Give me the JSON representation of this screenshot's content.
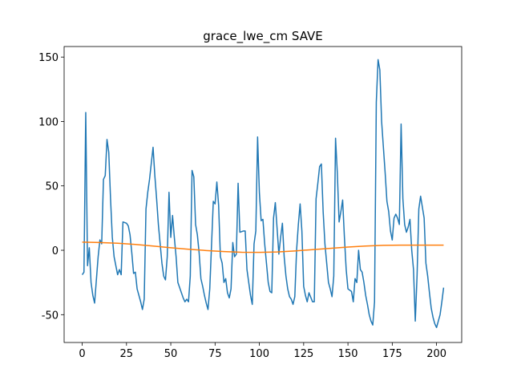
{
  "chart_data": {
    "type": "line",
    "title": "grace_lwe_cm SAVE",
    "xlim": [
      -10.2,
      214.2
    ],
    "xticks": [
      0,
      25,
      50,
      75,
      100,
      125,
      150,
      175,
      200
    ],
    "ylim": [
      -71.6,
      158.2
    ],
    "yticks": [
      -50,
      0,
      50,
      100,
      150
    ],
    "series": [
      {
        "color": "#1f77b4",
        "x": [
          0,
          1,
          2,
          3,
          4,
          5,
          6,
          7,
          9,
          10,
          11,
          12,
          13,
          14,
          15,
          16,
          17,
          18,
          19,
          20,
          21,
          22,
          23,
          25,
          26,
          27,
          28,
          29,
          30,
          31,
          32,
          33,
          34,
          35,
          36,
          37,
          38,
          40,
          41,
          42,
          43,
          44,
          45,
          46,
          47,
          48,
          49,
          50,
          51,
          52,
          53,
          54,
          56,
          57,
          58,
          59,
          60,
          61,
          62,
          63,
          64,
          65,
          66,
          67,
          68,
          69,
          70,
          71,
          72,
          74,
          75,
          76,
          77,
          78,
          79,
          80,
          81,
          82,
          83,
          84,
          85,
          86,
          87,
          88,
          89,
          91,
          92,
          93,
          94,
          95,
          96,
          97,
          98,
          99,
          100,
          101,
          102,
          103,
          104,
          105,
          106,
          107,
          108,
          109,
          111,
          112,
          113,
          114,
          115,
          116,
          117,
          118,
          119,
          120,
          121,
          122,
          123,
          124,
          125,
          126,
          127,
          128,
          130,
          131,
          132,
          133,
          134,
          135,
          136,
          137,
          138,
          139,
          140,
          141,
          142,
          143,
          144,
          145,
          146,
          147,
          148,
          149,
          150,
          152,
          153,
          154,
          155,
          156,
          157,
          158,
          159,
          160,
          161,
          162,
          163,
          164,
          165,
          166,
          167,
          168,
          169,
          171,
          172,
          173,
          174,
          175,
          176,
          177,
          178,
          179,
          180,
          181,
          182,
          183,
          184,
          185,
          186,
          187,
          188,
          189,
          190,
          191,
          193,
          194,
          195,
          196,
          197,
          198,
          199,
          200,
          201,
          202,
          203,
          204
        ],
        "values": [
          -19,
          -17,
          107,
          -12,
          2,
          -25,
          -35,
          -41,
          -5,
          8,
          5,
          55,
          58,
          86,
          76,
          40,
          10,
          -5,
          -12,
          -19,
          -15,
          -19,
          22,
          21,
          19,
          12,
          -2,
          -18,
          -17,
          -30,
          -35,
          -40,
          -46,
          -38,
          32,
          45,
          55,
          80,
          58,
          40,
          20,
          5,
          -10,
          -20,
          -23,
          -5,
          45,
          10,
          27,
          10,
          -5,
          -25,
          -33,
          -37,
          -40,
          -38,
          -40,
          -20,
          62,
          57,
          20,
          12,
          -2,
          -22,
          -28,
          -35,
          -41,
          -46,
          -30,
          38,
          36,
          53,
          35,
          -5,
          -10,
          -25,
          -22,
          -33,
          -37,
          -30,
          6,
          -5,
          -3,
          52,
          14,
          15,
          15,
          -15,
          -25,
          -35,
          -42,
          5,
          15,
          88,
          45,
          23,
          24,
          5,
          -10,
          -25,
          -32,
          -33,
          25,
          37,
          -3,
          10,
          21,
          -5,
          -20,
          -30,
          -36,
          -38,
          -42,
          -36,
          0,
          20,
          36,
          15,
          -28,
          -35,
          -40,
          -33,
          -40,
          -40,
          40,
          52,
          65,
          67,
          30,
          5,
          -10,
          -25,
          -30,
          -36,
          -20,
          87,
          60,
          22,
          30,
          39,
          10,
          -15,
          -30,
          -32,
          -40,
          -22,
          -25,
          0,
          -15,
          -17,
          -25,
          -35,
          -42,
          -50,
          -55,
          -58,
          -40,
          115,
          148,
          140,
          100,
          60,
          38,
          30,
          15,
          8,
          25,
          28,
          25,
          20,
          98,
          40,
          20,
          14,
          18,
          24,
          0,
          -15,
          -55,
          -20,
          32,
          42,
          25,
          -10,
          -20,
          -33,
          -45,
          -52,
          -57,
          -60,
          -55,
          -50,
          -40,
          -29
        ]
      },
      {
        "color": "#ff7f0e",
        "x": [
          0,
          10,
          20,
          30,
          40,
          50,
          60,
          70,
          80,
          90,
          100,
          110,
          120,
          130,
          140,
          150,
          160,
          170,
          180,
          190,
          204
        ],
        "values": [
          6.3,
          6,
          5.5,
          4.5,
          3.3,
          2,
          0.8,
          -0.2,
          -1,
          -1.5,
          -1.6,
          -1.3,
          -0.5,
          0.5,
          1.5,
          2.5,
          3.3,
          3.8,
          4,
          4,
          4
        ]
      }
    ]
  }
}
